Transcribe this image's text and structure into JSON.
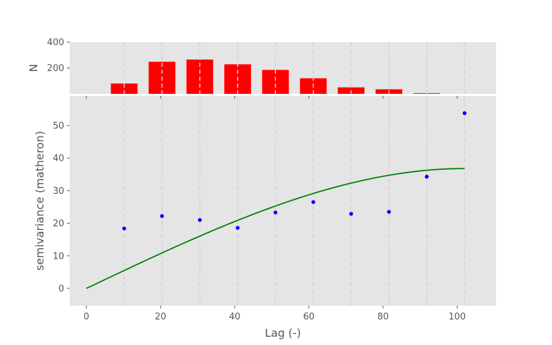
{
  "chart_data": [
    {
      "id": "histogram",
      "type": "bar",
      "ylabel": "N",
      "ylim": [
        0,
        400
      ],
      "yticks": [
        400,
        200
      ],
      "bar_color": "#ff0000",
      "x": [
        10.2,
        20.4,
        30.6,
        40.8,
        51.0,
        61.2,
        71.4,
        81.6,
        91.8
      ],
      "values": [
        80,
        248,
        265,
        228,
        185,
        120,
        50,
        35,
        5
      ]
    },
    {
      "id": "variogram",
      "type": "scatter",
      "xlabel": "Lag (-)",
      "ylabel": "semivariance (matheron)",
      "xlim": [
        -4.5,
        110.5
      ],
      "ylim": [
        -5.3,
        59.1
      ],
      "xticks": [
        0,
        20,
        40,
        60,
        80,
        100
      ],
      "yticks": [
        0,
        10,
        20,
        30,
        40,
        50
      ],
      "bin_edges": [
        10.2,
        20.4,
        30.6,
        40.8,
        51.0,
        61.2,
        71.4,
        81.6,
        91.8,
        102.0
      ],
      "experimental": {
        "color": "#0000ff",
        "x": [
          10.2,
          20.4,
          30.6,
          40.8,
          51.0,
          61.2,
          71.4,
          81.6,
          91.8,
          102.0
        ],
        "y": [
          18.4,
          22.2,
          21.0,
          18.6,
          23.3,
          26.5,
          22.9,
          23.5,
          34.3,
          53.8
        ]
      },
      "model": {
        "type": "spherical",
        "color": "#008000",
        "range": 102.0,
        "sill": 36.8,
        "nugget": 0
      }
    }
  ],
  "colors": {
    "plot_background": "#e5e5e5",
    "grid": "#d3d3d3"
  }
}
